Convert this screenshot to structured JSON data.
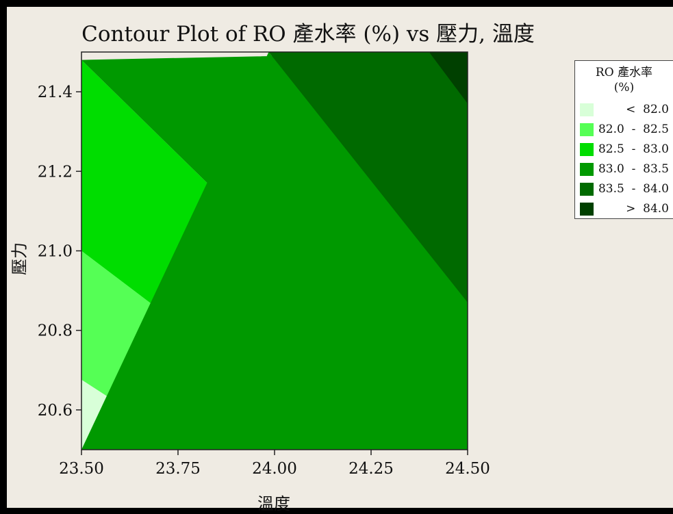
{
  "title": "Contour Plot of RO 產水率 (%) vs 壓力, 溫度",
  "chart_data": {
    "type": "contour",
    "title": "Contour Plot of RO 產水率 (%) vs 壓力, 溫度",
    "xlabel": "溫度",
    "ylabel": "壓力",
    "xlim": [
      23.5,
      24.5
    ],
    "ylim": [
      20.5,
      21.5
    ],
    "x_ticks": [
      "23.50",
      "23.75",
      "24.00",
      "24.25",
      "24.50"
    ],
    "y_ticks": [
      "20.6",
      "20.8",
      "21.0",
      "21.2",
      "21.4"
    ],
    "legend": {
      "title_line1": "RO 產水率",
      "title_line2": "(%)",
      "placement": "right",
      "items": [
        {
          "label": "<  82.0",
          "color": "#d8ffd8"
        },
        {
          "label": "82.0  -  82.5",
          "color": "#55ff55"
        },
        {
          "label": "82.5  -  83.0",
          "color": "#00dd00"
        },
        {
          "label": "83.0  -  83.5",
          "color": "#009900"
        },
        {
          "label": "83.5  -  84.0",
          "color": "#006a00"
        },
        {
          "label": ">  84.0",
          "color": "#004000"
        }
      ]
    },
    "levels": [
      82.0,
      82.5,
      83.0,
      83.5,
      84.0
    ],
    "contour_lines": [
      {
        "level": 82.0,
        "points": [
          [
            23.5,
            20.676
          ],
          [
            23.78,
            20.5
          ]
        ]
      },
      {
        "level": 82.5,
        "points": [
          [
            23.5,
            21.0
          ],
          [
            24.18,
            20.5
          ]
        ]
      },
      {
        "level": 83.0,
        "points": [
          [
            23.5,
            21.48
          ],
          [
            24.5,
            20.53
          ]
        ]
      },
      {
        "level": 83.5,
        "points": [
          [
            23.985,
            21.5
          ],
          [
            24.5,
            20.87
          ]
        ]
      },
      {
        "level": 84.0,
        "points": [
          [
            24.4,
            21.5
          ],
          [
            24.5,
            21.37
          ]
        ]
      }
    ]
  }
}
